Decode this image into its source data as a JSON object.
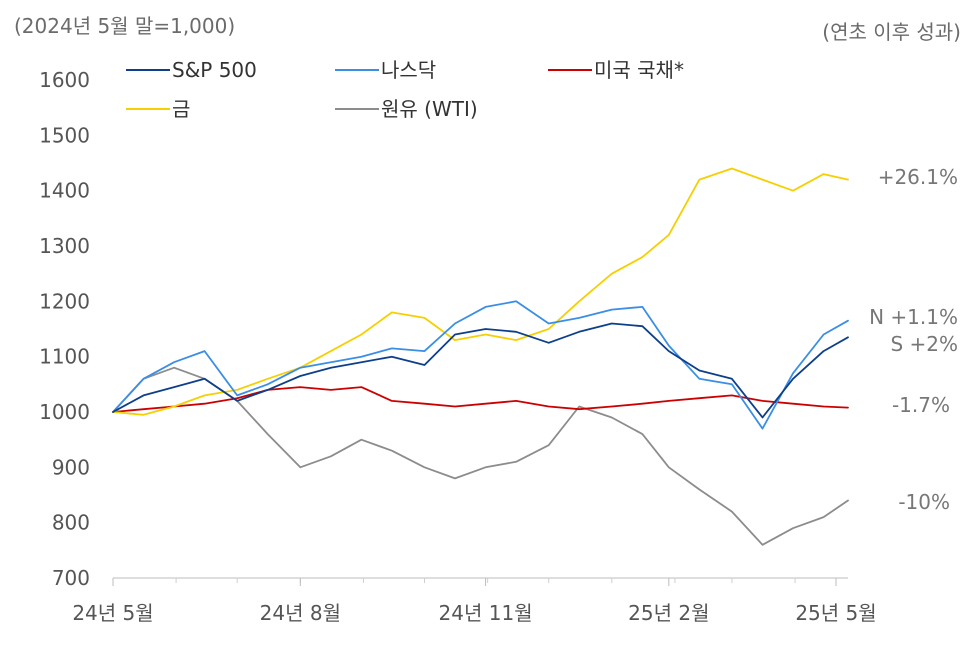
{
  "header": {
    "unit_note": "(2024년 5월 말=1,000)",
    "perf_note": "(연초 이후 성과)"
  },
  "colors": {
    "sp500": "#0d3f8a",
    "nasdaq": "#3a8ee6",
    "treasury": "#cc0000",
    "gold": "#f5d000",
    "wti": "#8c8c8c"
  },
  "chart_data": {
    "type": "line",
    "ylim": [
      700,
      1600
    ],
    "y_ticks": [
      "1600",
      "1500",
      "1400",
      "1300",
      "1200",
      "1100",
      "1000",
      "900",
      "800",
      "700"
    ],
    "x_ticks": [
      "24년 5월",
      "24년 8월",
      "24년 11월",
      "25년 2월",
      "25년 5월"
    ],
    "grid": false,
    "legend_position": "top-left",
    "x": [
      "2024-05-31",
      "2024-06-15",
      "2024-06-30",
      "2024-07-15",
      "2024-07-31",
      "2024-08-15",
      "2024-08-31",
      "2024-09-15",
      "2024-09-30",
      "2024-10-15",
      "2024-10-31",
      "2024-11-15",
      "2024-11-30",
      "2024-12-15",
      "2024-12-31",
      "2025-01-15",
      "2025-01-31",
      "2025-02-15",
      "2025-02-28",
      "2025-03-15",
      "2025-03-31",
      "2025-04-15",
      "2025-04-30",
      "2025-05-15",
      "2025-05-27"
    ],
    "series": [
      {
        "name": "S&P 500",
        "key": "sp500",
        "end_label": "S +2%",
        "values": [
          1000,
          1030,
          1045,
          1060,
          1020,
          1040,
          1065,
          1080,
          1090,
          1100,
          1085,
          1140,
          1150,
          1145,
          1125,
          1145,
          1160,
          1155,
          1110,
          1075,
          1060,
          990,
          1060,
          1110,
          1135
        ]
      },
      {
        "name": "나스닥",
        "key": "nasdaq",
        "end_label": "N +1.1%",
        "values": [
          1000,
          1060,
          1090,
          1110,
          1030,
          1050,
          1080,
          1090,
          1100,
          1115,
          1110,
          1160,
          1190,
          1200,
          1160,
          1170,
          1185,
          1190,
          1120,
          1060,
          1050,
          970,
          1070,
          1140,
          1165
        ]
      },
      {
        "name": "미국 국채*",
        "key": "treasury",
        "end_label": "-1.7%",
        "values": [
          1000,
          1005,
          1010,
          1015,
          1025,
          1040,
          1045,
          1040,
          1045,
          1020,
          1015,
          1010,
          1015,
          1020,
          1010,
          1005,
          1010,
          1015,
          1020,
          1025,
          1030,
          1020,
          1015,
          1010,
          1008
        ]
      },
      {
        "name": "금",
        "key": "gold",
        "end_label": "+26.1%",
        "values": [
          1000,
          995,
          1010,
          1030,
          1040,
          1060,
          1080,
          1110,
          1140,
          1180,
          1170,
          1130,
          1140,
          1130,
          1150,
          1200,
          1250,
          1280,
          1320,
          1420,
          1440,
          1420,
          1400,
          1430,
          1420
        ]
      },
      {
        "name": "원유 (WTI)",
        "key": "wti",
        "end_label": "-10%",
        "values": [
          1000,
          1060,
          1080,
          1060,
          1020,
          960,
          900,
          920,
          950,
          930,
          900,
          880,
          900,
          910,
          940,
          1010,
          990,
          960,
          900,
          860,
          820,
          760,
          790,
          810,
          840
        ]
      }
    ]
  }
}
